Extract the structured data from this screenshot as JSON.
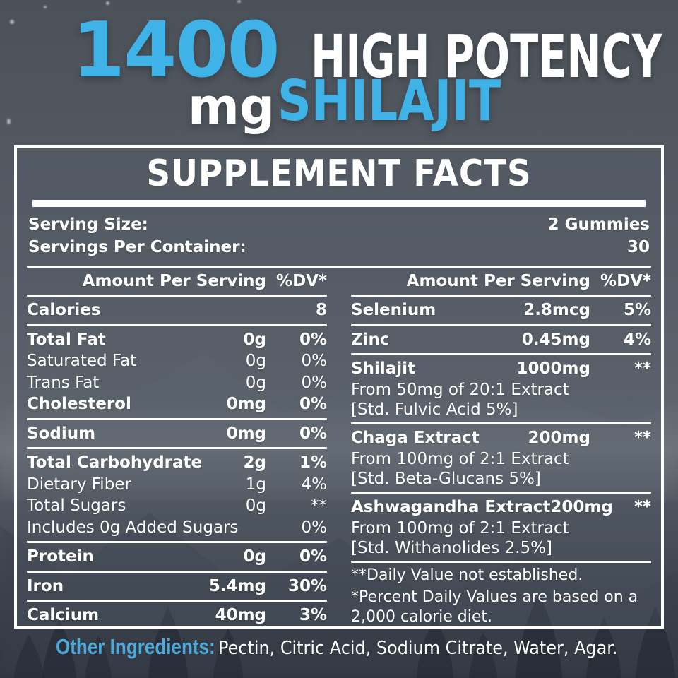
{
  "colors": {
    "accent_blue": "#3fb2e7",
    "footer_blue": "#4fa9da",
    "panel_line": "#ffffff"
  },
  "header": {
    "amount": "1400",
    "unit": "mg",
    "tagline": "HIGH POTENCY",
    "product": "SHILAJIT"
  },
  "panel": {
    "title": "SUPPLEMENT FACTS",
    "serving_size_label": "Serving Size:",
    "serving_size_value": "2 Gummies",
    "servings_per_container_label": "Servings Per Container:",
    "servings_per_container_value": "30",
    "columns": [
      {
        "header_amount": "Amount Per Serving",
        "header_dv": "%DV*",
        "rows": [
          {
            "label": "Calories",
            "amount": "8",
            "dv": "",
            "bold": true,
            "rule_after": true
          },
          {
            "label": "Total Fat",
            "amount": "0g",
            "dv": "0%",
            "bold": true
          },
          {
            "label": "Saturated Fat",
            "amount": "0g",
            "dv": "0%"
          },
          {
            "label": "Trans Fat",
            "amount": "0g",
            "dv": "0%"
          },
          {
            "label": "Cholesterol",
            "amount": "0mg",
            "dv": "0%",
            "bold": true,
            "rule_after": true
          },
          {
            "label": "Sodium",
            "amount": "0mg",
            "dv": "0%",
            "bold": true,
            "rule_after": true
          },
          {
            "label": "Total Carbohydrate",
            "amount": "2g",
            "dv": "1%",
            "bold": true
          },
          {
            "label": "Dietary Fiber",
            "amount": "1g",
            "dv": "4%"
          },
          {
            "label": "Total Sugars",
            "amount": "0g",
            "dv": "**"
          },
          {
            "label": "Includes 0g Added Sugars",
            "amount": "",
            "dv": "0%",
            "rule_after": true
          },
          {
            "label": "Protein",
            "amount": "0g",
            "dv": "0%",
            "bold": true,
            "rule_after": true
          },
          {
            "label": "Iron",
            "amount": "5.4mg",
            "dv": "30%",
            "bold": true,
            "rule_after": true
          },
          {
            "label": "Calcium",
            "amount": "40mg",
            "dv": "3%",
            "bold": true
          }
        ]
      },
      {
        "header_amount": "Amount Per Serving",
        "header_dv": "%DV*",
        "rows": [
          {
            "label": "Selenium",
            "amount": "2.8mcg",
            "dv": "5%",
            "bold": true,
            "rule_after": true
          },
          {
            "label": "Zinc",
            "amount": "0.45mg",
            "dv": "4%",
            "bold": true,
            "rule_after": true
          },
          {
            "label": "Shilajit",
            "amount": "1000mg",
            "dv": "**",
            "bold": true
          },
          {
            "label": "From 50mg of 20:1 Extract",
            "sub": true
          },
          {
            "label": "[Std. Fulvic Acid 5%]",
            "sub": true,
            "rule_after": true
          },
          {
            "label": "Chaga Extract",
            "amount": "200mg",
            "dv": "**",
            "bold": true
          },
          {
            "label": "From 100mg of 2:1 Extract",
            "sub": true
          },
          {
            "label": "[Std. Beta-Glucans 5%]",
            "sub": true,
            "rule_after": true
          },
          {
            "label": "Ashwagandha Extract",
            "amount": "200mg",
            "dv": "**",
            "bold": true
          },
          {
            "label": "From 100mg of 2:1 Extract",
            "sub": true
          },
          {
            "label": "[Std. Withanolides 2.5%]",
            "sub": true,
            "rule_after": true
          }
        ],
        "footnotes": [
          "**Daily Value not established.",
          "*Percent Daily Values are based on a 2,000 calorie diet."
        ]
      }
    ]
  },
  "other_ingredients": {
    "label": "Other Ingredients:",
    "value": "Pectin, Citric Acid, Sodium Citrate, Water, Agar."
  }
}
